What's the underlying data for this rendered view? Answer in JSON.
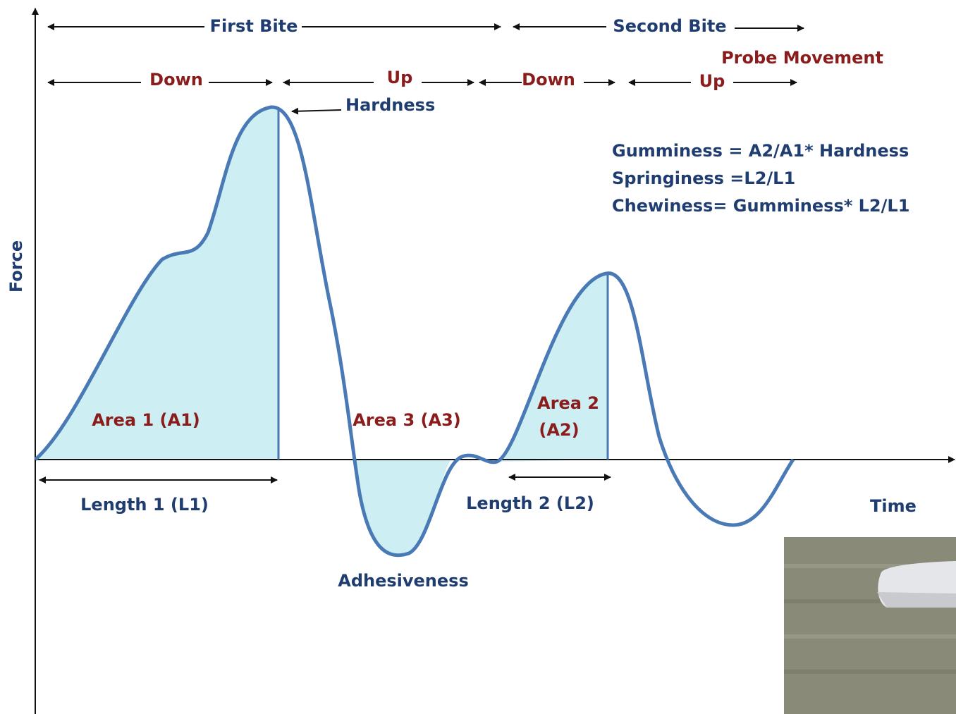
{
  "axes": {
    "y_label": "Force",
    "x_label": "Time"
  },
  "bites": {
    "first": "First Bite",
    "second": "Second Bite"
  },
  "probe_movement": {
    "title": "Probe Movement",
    "steps": [
      "Down",
      "Up",
      "Down",
      "Up"
    ]
  },
  "hardness": "Hardness",
  "formulas": [
    "Gumminess = A2/A1* Hardness",
    "Springiness =L2/L1",
    "Chewiness= Gumminess* L2/L1"
  ],
  "areas": {
    "area1": "Area 1 (A1)",
    "area3": "Area 3 (A3)",
    "area2_line1": "Area 2",
    "area2_line2": "(A2)"
  },
  "lengths": {
    "length1": "Length 1 (L1)",
    "length2": "Length 2 (L2)"
  },
  "adhesiveness": "Adhesiveness"
}
